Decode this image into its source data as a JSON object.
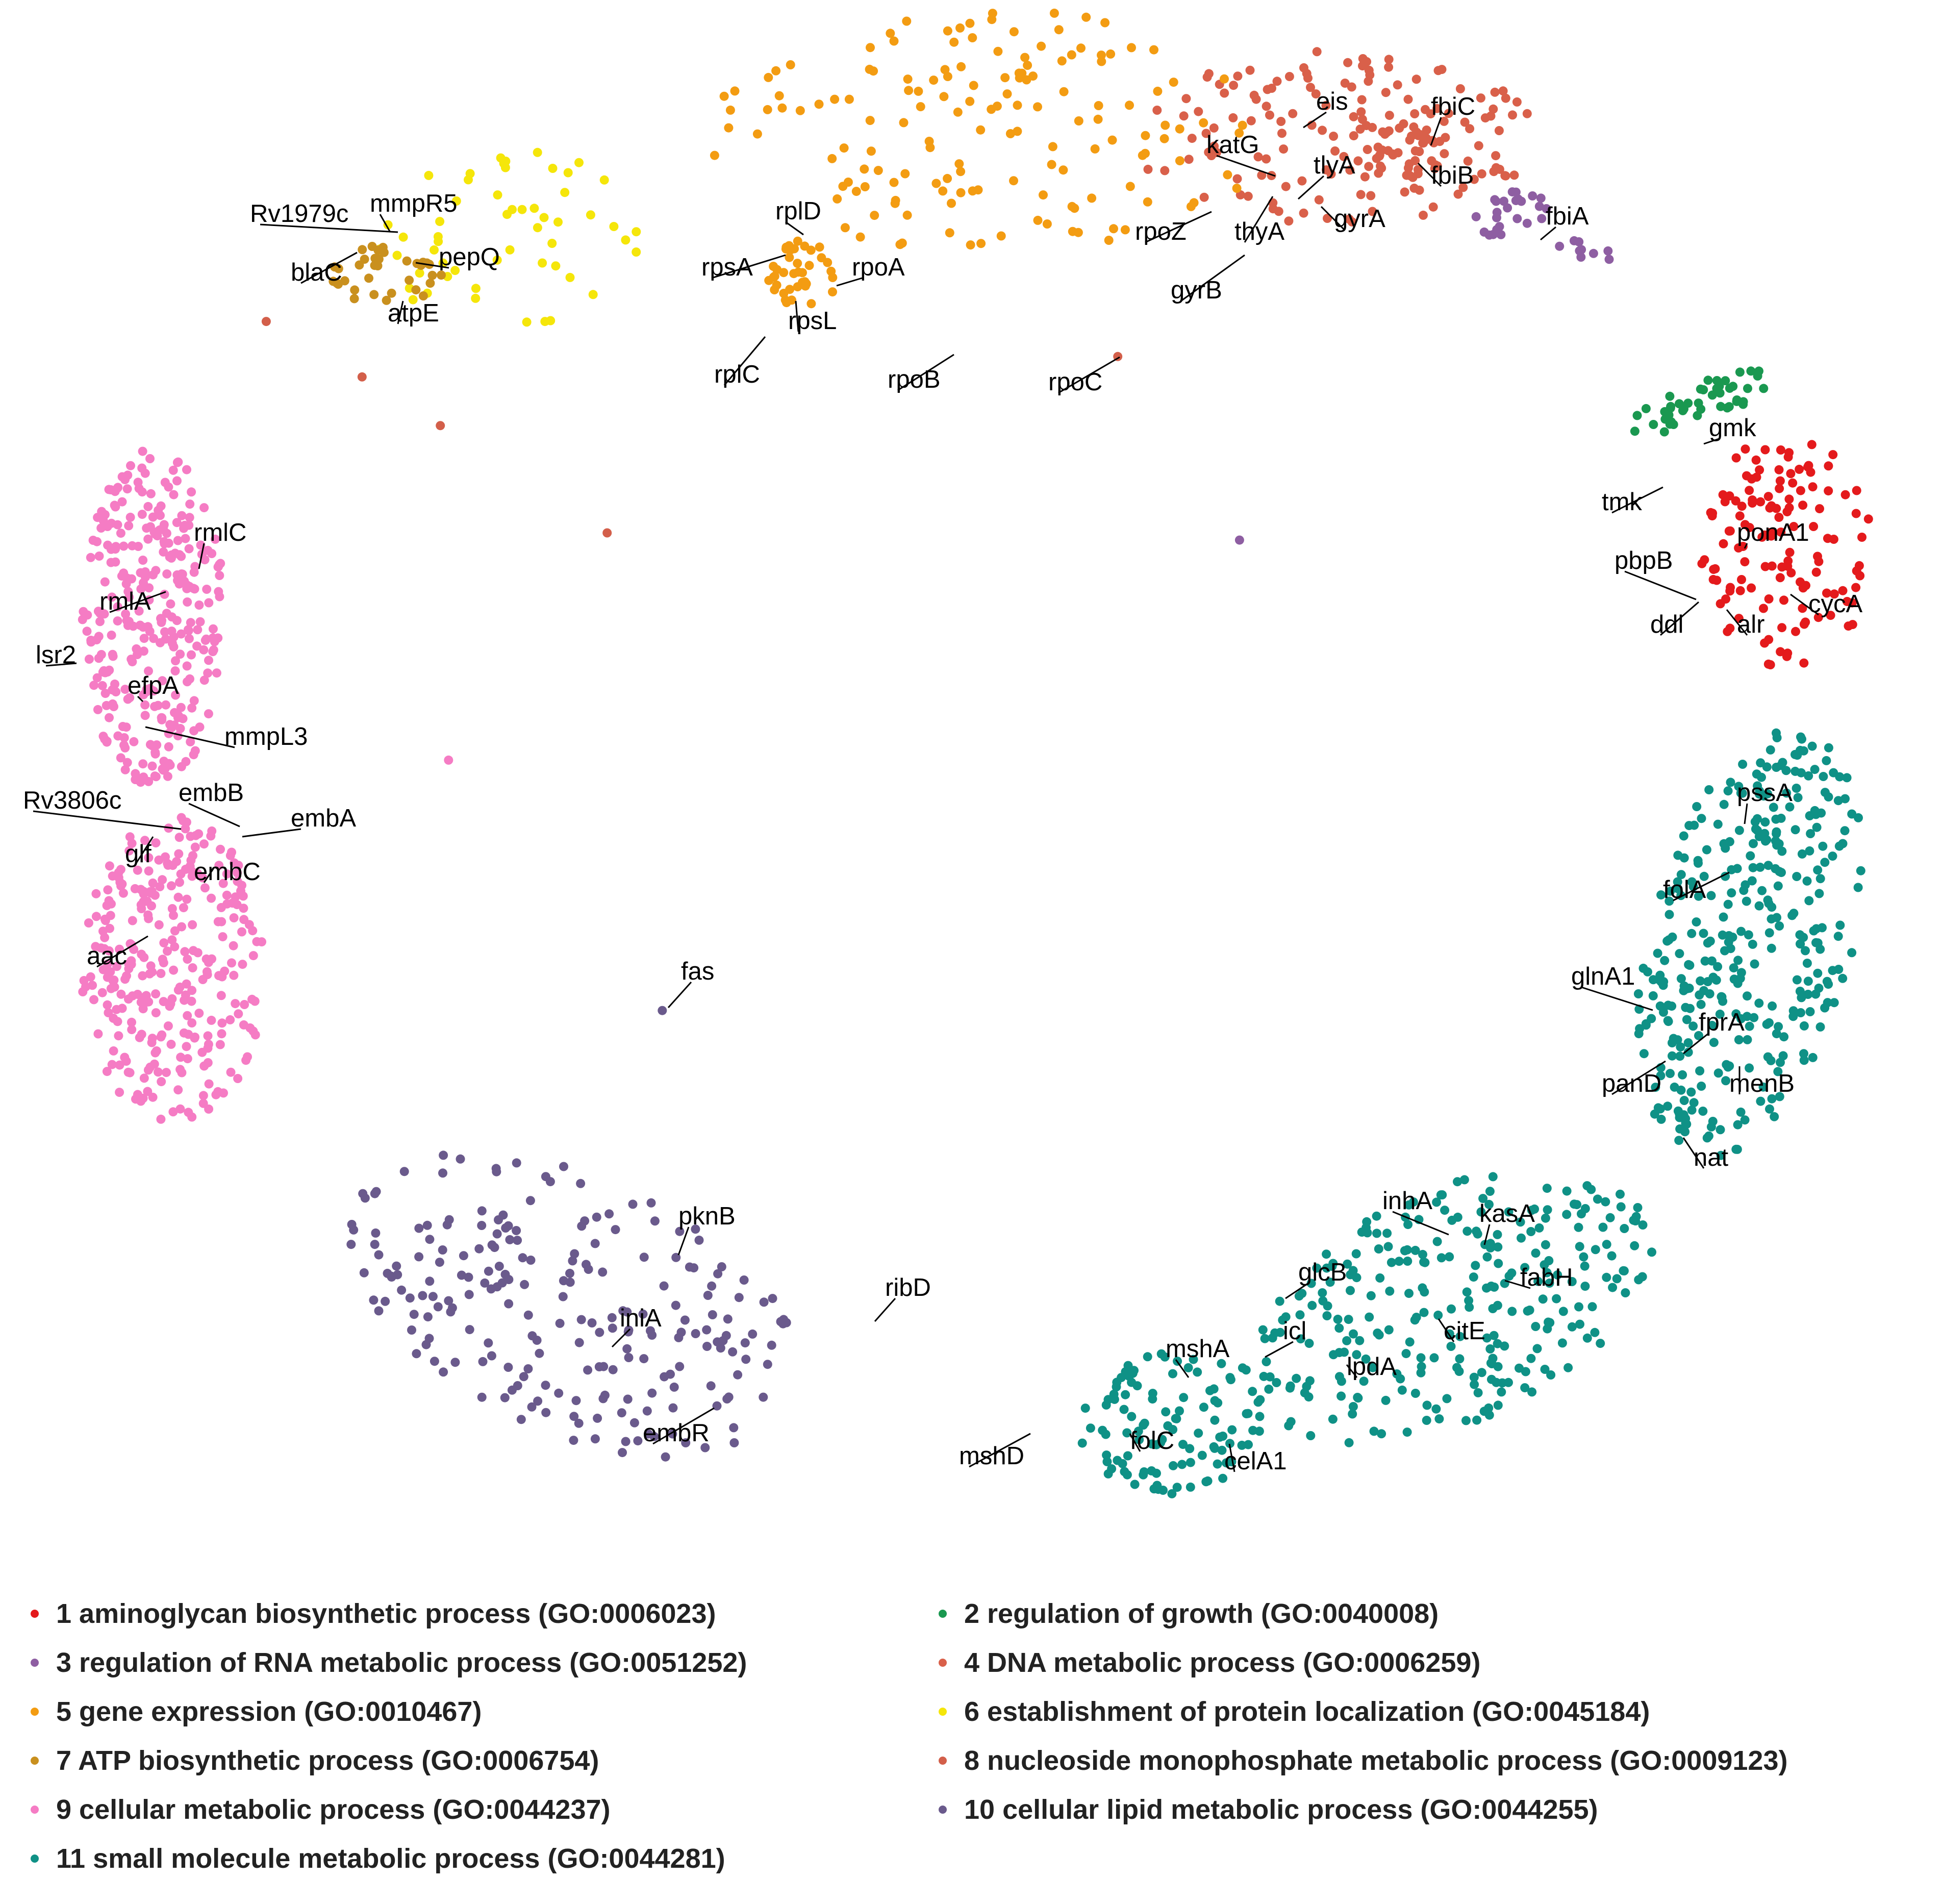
{
  "chart_data": {
    "type": "scatter",
    "title": "",
    "xlabel": "",
    "ylabel": "",
    "grid": false,
    "axes_visible": false,
    "legend_position": "bottom",
    "clusters": [
      {
        "id": 1,
        "name": "1 aminoglycan biosynthetic process (GO:0006023)",
        "color": "#e41a1c"
      },
      {
        "id": 2,
        "name": "2 regulation of growth (GO:0040008)",
        "color": "#1a9850"
      },
      {
        "id": 3,
        "name": "3 regulation of RNA metabolic process (GO:0051252)",
        "color": "#8e5ea2"
      },
      {
        "id": 4,
        "name": "4 DNA metabolic process (GO:0006259)",
        "color": "#d9604a"
      },
      {
        "id": 5,
        "name": "5 gene expression (GO:0010467)",
        "color": "#f39c12"
      },
      {
        "id": 6,
        "name": "6 establishment of protein localization (GO:0045184)",
        "color": "#f5e60a"
      },
      {
        "id": 7,
        "name": "7 ATP biosynthetic process (GO:0006754)",
        "color": "#c9901e"
      },
      {
        "id": 8,
        "name": "8 nucleoside monophosphate metabolic process (GO:0009123)",
        "color": "#d35f4a"
      },
      {
        "id": 9,
        "name": "9 cellular metabolic process (GO:0044237)",
        "color": "#f57cc4"
      },
      {
        "id": 10,
        "name": "10 cellular lipid metabolic process (GO:0044255)",
        "color": "#6a5a8c"
      },
      {
        "id": 11,
        "name": "11 small molecule metabolic process (GO:0044281)",
        "color": "#0f9186"
      }
    ],
    "labeled_genes": [
      {
        "gene": "gmk",
        "cluster": 1
      },
      {
        "gene": "tmk",
        "cluster": 1
      },
      {
        "gene": "ponA1",
        "cluster": 1
      },
      {
        "gene": "pbpB",
        "cluster": 1
      },
      {
        "gene": "cycA",
        "cluster": 1
      },
      {
        "gene": "ddl",
        "cluster": 1
      },
      {
        "gene": "alr",
        "cluster": 1
      },
      {
        "gene": "fbiA",
        "cluster": 3
      },
      {
        "gene": "eis",
        "cluster": 4
      },
      {
        "gene": "fbiC",
        "cluster": 4
      },
      {
        "gene": "katG",
        "cluster": 4
      },
      {
        "gene": "tlyA",
        "cluster": 4
      },
      {
        "gene": "fbiB",
        "cluster": 4
      },
      {
        "gene": "rpoZ",
        "cluster": 4
      },
      {
        "gene": "thyA",
        "cluster": 4
      },
      {
        "gene": "gyrA",
        "cluster": 4
      },
      {
        "gene": "gyrB",
        "cluster": 4
      },
      {
        "gene": "rplD",
        "cluster": 5
      },
      {
        "gene": "rpsA",
        "cluster": 5
      },
      {
        "gene": "rpoA",
        "cluster": 5
      },
      {
        "gene": "rpsL",
        "cluster": 5
      },
      {
        "gene": "rplC",
        "cluster": 5
      },
      {
        "gene": "rpoB",
        "cluster": 5
      },
      {
        "gene": "rpoC",
        "cluster": 5
      },
      {
        "gene": "Rv1979c",
        "cluster": 7
      },
      {
        "gene": "mmpR5",
        "cluster": 7
      },
      {
        "gene": "blaC",
        "cluster": 7
      },
      {
        "gene": "pepQ",
        "cluster": 7
      },
      {
        "gene": "atpE",
        "cluster": 7
      },
      {
        "gene": "rmlC",
        "cluster": 9
      },
      {
        "gene": "rmlA",
        "cluster": 9
      },
      {
        "gene": "lsr2",
        "cluster": 9
      },
      {
        "gene": "efpA",
        "cluster": 9
      },
      {
        "gene": "mmpL3",
        "cluster": 9
      },
      {
        "gene": "Rv3806c",
        "cluster": 9
      },
      {
        "gene": "embB",
        "cluster": 9
      },
      {
        "gene": "embA",
        "cluster": 9
      },
      {
        "gene": "glf",
        "cluster": 9
      },
      {
        "gene": "embC",
        "cluster": 9
      },
      {
        "gene": "aac",
        "cluster": 9
      },
      {
        "gene": "fas",
        "cluster": 10
      },
      {
        "gene": "pknB",
        "cluster": 10
      },
      {
        "gene": "ribD",
        "cluster": 10
      },
      {
        "gene": "iniA",
        "cluster": 10
      },
      {
        "gene": "embR",
        "cluster": 10
      },
      {
        "gene": "pssA",
        "cluster": 11
      },
      {
        "gene": "folA",
        "cluster": 11
      },
      {
        "gene": "glnA1",
        "cluster": 11
      },
      {
        "gene": "fprA",
        "cluster": 11
      },
      {
        "gene": "panD",
        "cluster": 11
      },
      {
        "gene": "menB",
        "cluster": 11
      },
      {
        "gene": "nat",
        "cluster": 11
      },
      {
        "gene": "inhA",
        "cluster": 11
      },
      {
        "gene": "kasA",
        "cluster": 11
      },
      {
        "gene": "glcB",
        "cluster": 11
      },
      {
        "gene": "fabH",
        "cluster": 11
      },
      {
        "gene": "icl",
        "cluster": 11
      },
      {
        "gene": "citE",
        "cluster": 11
      },
      {
        "gene": "mshA",
        "cluster": 11
      },
      {
        "gene": "lpdA",
        "cluster": 11
      },
      {
        "gene": "mshD",
        "cluster": 11
      },
      {
        "gene": "folC",
        "cluster": 11
      },
      {
        "gene": "celA1",
        "cluster": 11
      }
    ]
  }
}
